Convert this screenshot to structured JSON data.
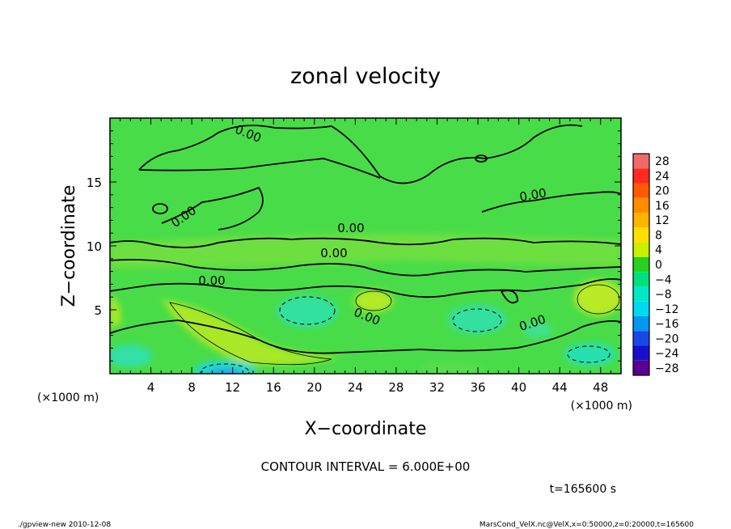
{
  "chart_data": {
    "type": "heatmap",
    "title": "zonal velocity",
    "xlabel": "X−coordinate",
    "ylabel": "Z−coordinate",
    "x_unit_left": "(×1000 m)",
    "x_unit_right": "(×1000 m)",
    "xlim": [
      0,
      50
    ],
    "ylim": [
      0,
      20
    ],
    "x_ticks": [
      4,
      8,
      12,
      16,
      20,
      24,
      28,
      32,
      36,
      40,
      44,
      48
    ],
    "y_ticks": [
      5,
      10,
      15
    ],
    "colorbar_levels": [
      "28",
      "24",
      "20",
      "16",
      "12",
      "8",
      "4",
      "0",
      "−4",
      "−8",
      "−12",
      "−16",
      "−20",
      "−24",
      "−28"
    ],
    "colorbar_colors": [
      "#f06a6a",
      "#ff2a20",
      "#ff5a00",
      "#ff8c00",
      "#ffb400",
      "#ffe000",
      "#c8f000",
      "#28d020",
      "#00e07a",
      "#00e8c8",
      "#00d8f0",
      "#0098f0",
      "#1848e8",
      "#1810c8",
      "#5a0090"
    ],
    "contour_labels": [
      "0.00",
      "0.00",
      "0.00",
      "0.00",
      "0.00",
      "0.00",
      "0.00",
      "0.00"
    ],
    "contour_interval_text": "CONTOUR INTERVAL = 6.000E+00",
    "time_text": "t=165600 s"
  },
  "footer": {
    "left": "./gpview-new  2010-12-08",
    "right": "MarsCond_VelX.nc@VelX,x=0:50000,z=0:20000,t=165600"
  }
}
